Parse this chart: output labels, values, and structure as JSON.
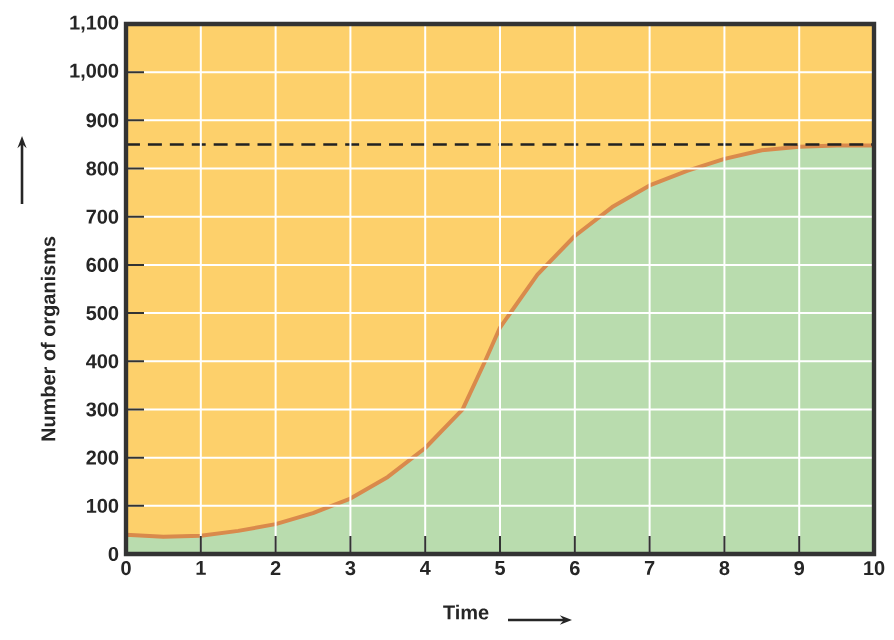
{
  "chart_data": {
    "type": "area",
    "xlabel": "Time",
    "ylabel": "Number of organisms",
    "x": [
      0,
      0.5,
      1,
      1.5,
      2,
      2.5,
      3,
      3.5,
      4,
      4.5,
      4.8,
      5,
      5.5,
      6,
      6.5,
      7,
      7.5,
      8,
      8.5,
      9,
      9.5,
      10
    ],
    "series": [
      {
        "color": "#b9dcae",
        "values": [
          40,
          36,
          38,
          48,
          62,
          85,
          115,
          160,
          220,
          300,
          400,
          470,
          580,
          660,
          720,
          765,
          795,
          820,
          838,
          845,
          848,
          848
        ]
      }
    ],
    "xlim": [
      0,
      10
    ],
    "xticks": [
      0,
      1,
      2,
      3,
      4,
      5,
      6,
      7,
      8,
      9,
      10
    ],
    "ylim": [
      0,
      1100
    ],
    "yticks": [
      0,
      100,
      200,
      300,
      400,
      500,
      600,
      700,
      800,
      900,
      {
        "value": 1000,
        "label": "1,000"
      },
      {
        "value": 1100,
        "label": "1,100"
      }
    ],
    "grid": true,
    "ref_lines": [
      {
        "axis": "y",
        "value": 850,
        "color": "#222222",
        "line_style": "dashed"
      }
    ]
  }
}
